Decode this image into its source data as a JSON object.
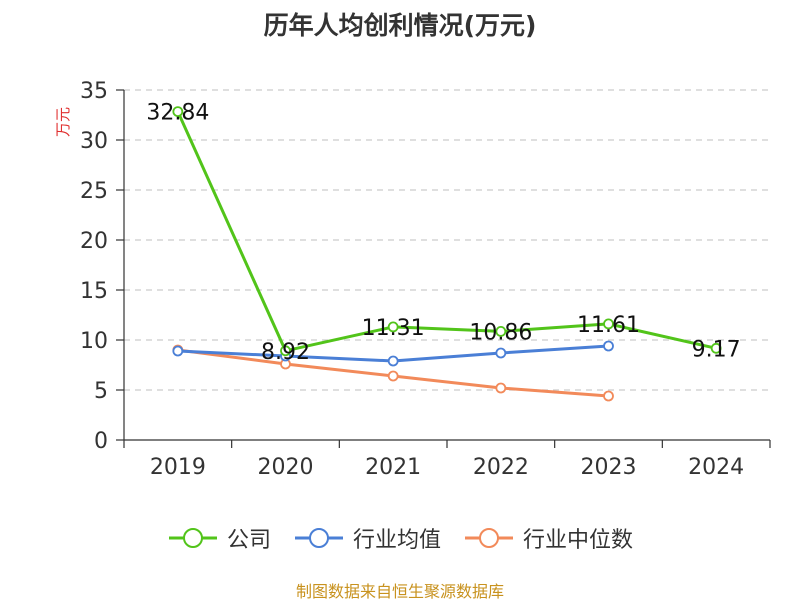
{
  "chart_data": {
    "type": "line",
    "title": "历年人均创利情况(万元)",
    "ylabel": "万元",
    "categories": [
      "2019",
      "2020",
      "2021",
      "2022",
      "2023",
      "2024"
    ],
    "ylim": [
      0,
      35
    ],
    "yticks": [
      0,
      5,
      10,
      15,
      20,
      25,
      30,
      35
    ],
    "grid": true,
    "legend_position": "bottom",
    "series": [
      {
        "name": "公司",
        "color": "#52c41a",
        "values": [
          32.84,
          8.92,
          11.31,
          10.86,
          11.61,
          9.17
        ],
        "labels": [
          "32.84",
          "8.92",
          "11.31",
          "10.86",
          "11.61",
          "9.17"
        ]
      },
      {
        "name": "行业均值",
        "color": "#4a7fd6",
        "values": [
          8.9,
          8.4,
          7.9,
          8.7,
          9.4,
          null
        ]
      },
      {
        "name": "行业中位数",
        "color": "#f28a5a",
        "values": [
          9.0,
          7.6,
          6.4,
          5.2,
          4.4,
          null
        ]
      }
    ]
  },
  "source_note": "制图数据来自恒生聚源数据库",
  "colors": {
    "ylabel": "#e03030",
    "grid": "#cccccc",
    "axis": "#333333"
  }
}
